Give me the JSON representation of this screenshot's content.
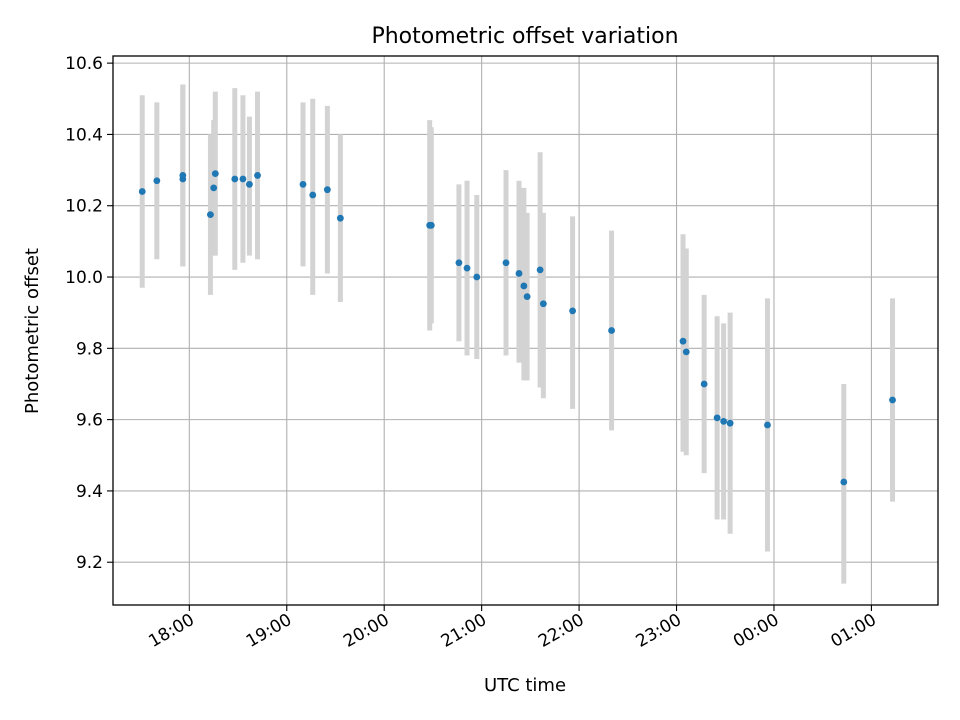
{
  "chart_data": {
    "type": "scatter",
    "title": "Photometric offset variation",
    "xlabel": "UTC time",
    "ylabel": "Photometric offset",
    "x_ticks": [
      "18:00",
      "19:00",
      "20:00",
      "21:00",
      "22:00",
      "23:00",
      "00:00",
      "01:00"
    ],
    "y_ticks": [
      "9.2",
      "9.4",
      "9.6",
      "9.8",
      "10.0",
      "10.2",
      "10.4",
      "10.6"
    ],
    "xlim": [
      "17:13",
      "01:41"
    ],
    "ylim": [
      9.08,
      10.62
    ],
    "grid": true,
    "colors": {
      "point": "#1f77b4",
      "errorbar": "#d3d3d3",
      "grid": "#b0b0b0"
    },
    "series": [
      {
        "points": [
          {
            "time": "17:31",
            "y": 10.24,
            "ymin": 9.97,
            "ymax": 10.51
          },
          {
            "time": "17:40",
            "y": 10.27,
            "ymin": 10.05,
            "ymax": 10.49
          },
          {
            "time": "17:56",
            "y": 10.275,
            "ymin": 10.03,
            "ymax": 10.54
          },
          {
            "time": "17:56",
            "y": 10.285,
            "ymin": 10.03,
            "ymax": 10.54
          },
          {
            "time": "18:13",
            "y": 10.175,
            "ymin": 9.95,
            "ymax": 10.4
          },
          {
            "time": "18:15",
            "y": 10.25,
            "ymin": 10.06,
            "ymax": 10.44
          },
          {
            "time": "18:16",
            "y": 10.29,
            "ymin": 10.06,
            "ymax": 10.52
          },
          {
            "time": "18:28",
            "y": 10.275,
            "ymin": 10.02,
            "ymax": 10.53
          },
          {
            "time": "18:33",
            "y": 10.275,
            "ymin": 10.04,
            "ymax": 10.51
          },
          {
            "time": "18:37",
            "y": 10.26,
            "ymin": 10.06,
            "ymax": 10.45
          },
          {
            "time": "18:42",
            "y": 10.285,
            "ymin": 10.05,
            "ymax": 10.52
          },
          {
            "time": "19:10",
            "y": 10.26,
            "ymin": 10.03,
            "ymax": 10.49
          },
          {
            "time": "19:16",
            "y": 10.23,
            "ymin": 9.95,
            "ymax": 10.5
          },
          {
            "time": "19:25",
            "y": 10.245,
            "ymin": 10.01,
            "ymax": 10.48
          },
          {
            "time": "19:33",
            "y": 10.165,
            "ymin": 9.93,
            "ymax": 10.4
          },
          {
            "time": "20:28",
            "y": 10.145,
            "ymin": 9.85,
            "ymax": 10.44
          },
          {
            "time": "20:29",
            "y": 10.145,
            "ymin": 9.87,
            "ymax": 10.42
          },
          {
            "time": "20:46",
            "y": 10.04,
            "ymin": 9.82,
            "ymax": 10.26
          },
          {
            "time": "20:51",
            "y": 10.025,
            "ymin": 9.78,
            "ymax": 10.27
          },
          {
            "time": "20:57",
            "y": 10.0,
            "ymin": 9.77,
            "ymax": 10.23
          },
          {
            "time": "21:15",
            "y": 10.04,
            "ymin": 9.78,
            "ymax": 10.3
          },
          {
            "time": "21:23",
            "y": 10.01,
            "ymin": 9.76,
            "ymax": 10.27
          },
          {
            "time": "21:26",
            "y": 9.975,
            "ymin": 9.71,
            "ymax": 10.25
          },
          {
            "time": "21:28",
            "y": 9.945,
            "ymin": 9.71,
            "ymax": 10.18
          },
          {
            "time": "21:36",
            "y": 10.02,
            "ymin": 9.69,
            "ymax": 10.35
          },
          {
            "time": "21:38",
            "y": 9.925,
            "ymin": 9.66,
            "ymax": 10.18
          },
          {
            "time": "21:56",
            "y": 9.905,
            "ymin": 9.63,
            "ymax": 10.17
          },
          {
            "time": "22:20",
            "y": 9.85,
            "ymin": 9.57,
            "ymax": 10.13
          },
          {
            "time": "23:04",
            "y": 9.82,
            "ymin": 9.51,
            "ymax": 10.12
          },
          {
            "time": "23:06",
            "y": 9.79,
            "ymin": 9.5,
            "ymax": 10.08
          },
          {
            "time": "23:17",
            "y": 9.7,
            "ymin": 9.45,
            "ymax": 9.95
          },
          {
            "time": "23:25",
            "y": 9.605,
            "ymin": 9.32,
            "ymax": 9.89
          },
          {
            "time": "23:29",
            "y": 9.595,
            "ymin": 9.32,
            "ymax": 9.87
          },
          {
            "time": "23:33",
            "y": 9.59,
            "ymin": 9.28,
            "ymax": 9.9
          },
          {
            "time": "23:56",
            "y": 9.585,
            "ymin": 9.23,
            "ymax": 9.94
          },
          {
            "time": "00:43",
            "y": 9.425,
            "ymin": 9.14,
            "ymax": 9.7
          },
          {
            "time": "01:13",
            "y": 9.655,
            "ymin": 9.37,
            "ymax": 9.94
          }
        ]
      }
    ]
  }
}
